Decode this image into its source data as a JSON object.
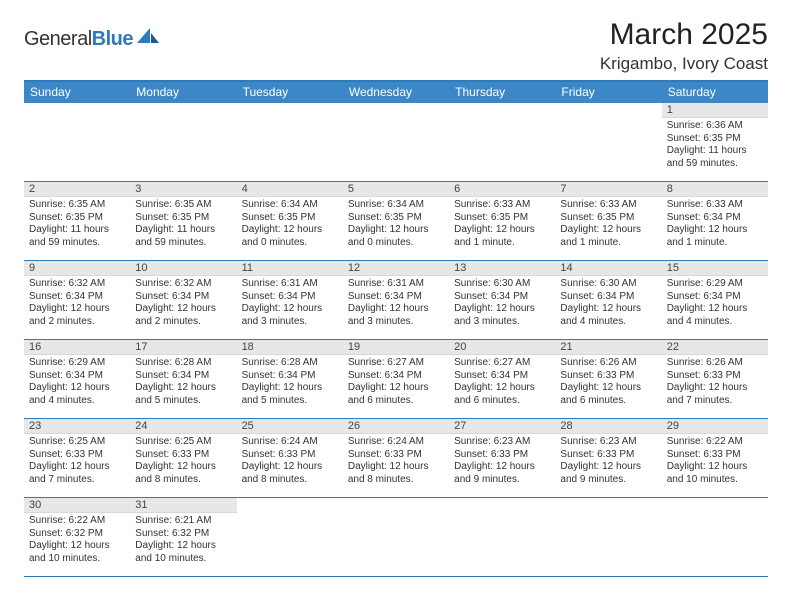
{
  "brand": {
    "name_a": "General",
    "name_b": "Blue"
  },
  "title": "March 2025",
  "location": "Krigambo, Ivory Coast",
  "colors": {
    "header_bg": "#3b87c8",
    "border": "#2f7ab8",
    "daynum_bg": "#e7e7e7"
  },
  "day_names": [
    "Sunday",
    "Monday",
    "Tuesday",
    "Wednesday",
    "Thursday",
    "Friday",
    "Saturday"
  ],
  "weeks": [
    [
      null,
      null,
      null,
      null,
      null,
      null,
      {
        "n": "1",
        "sr": "Sunrise: 6:36 AM",
        "ss": "Sunset: 6:35 PM",
        "dl": "Daylight: 11 hours and 59 minutes."
      }
    ],
    [
      {
        "n": "2",
        "sr": "Sunrise: 6:35 AM",
        "ss": "Sunset: 6:35 PM",
        "dl": "Daylight: 11 hours and 59 minutes."
      },
      {
        "n": "3",
        "sr": "Sunrise: 6:35 AM",
        "ss": "Sunset: 6:35 PM",
        "dl": "Daylight: 11 hours and 59 minutes."
      },
      {
        "n": "4",
        "sr": "Sunrise: 6:34 AM",
        "ss": "Sunset: 6:35 PM",
        "dl": "Daylight: 12 hours and 0 minutes."
      },
      {
        "n": "5",
        "sr": "Sunrise: 6:34 AM",
        "ss": "Sunset: 6:35 PM",
        "dl": "Daylight: 12 hours and 0 minutes."
      },
      {
        "n": "6",
        "sr": "Sunrise: 6:33 AM",
        "ss": "Sunset: 6:35 PM",
        "dl": "Daylight: 12 hours and 1 minute."
      },
      {
        "n": "7",
        "sr": "Sunrise: 6:33 AM",
        "ss": "Sunset: 6:35 PM",
        "dl": "Daylight: 12 hours and 1 minute."
      },
      {
        "n": "8",
        "sr": "Sunrise: 6:33 AM",
        "ss": "Sunset: 6:34 PM",
        "dl": "Daylight: 12 hours and 1 minute."
      }
    ],
    [
      {
        "n": "9",
        "sr": "Sunrise: 6:32 AM",
        "ss": "Sunset: 6:34 PM",
        "dl": "Daylight: 12 hours and 2 minutes."
      },
      {
        "n": "10",
        "sr": "Sunrise: 6:32 AM",
        "ss": "Sunset: 6:34 PM",
        "dl": "Daylight: 12 hours and 2 minutes."
      },
      {
        "n": "11",
        "sr": "Sunrise: 6:31 AM",
        "ss": "Sunset: 6:34 PM",
        "dl": "Daylight: 12 hours and 3 minutes."
      },
      {
        "n": "12",
        "sr": "Sunrise: 6:31 AM",
        "ss": "Sunset: 6:34 PM",
        "dl": "Daylight: 12 hours and 3 minutes."
      },
      {
        "n": "13",
        "sr": "Sunrise: 6:30 AM",
        "ss": "Sunset: 6:34 PM",
        "dl": "Daylight: 12 hours and 3 minutes."
      },
      {
        "n": "14",
        "sr": "Sunrise: 6:30 AM",
        "ss": "Sunset: 6:34 PM",
        "dl": "Daylight: 12 hours and 4 minutes."
      },
      {
        "n": "15",
        "sr": "Sunrise: 6:29 AM",
        "ss": "Sunset: 6:34 PM",
        "dl": "Daylight: 12 hours and 4 minutes."
      }
    ],
    [
      {
        "n": "16",
        "sr": "Sunrise: 6:29 AM",
        "ss": "Sunset: 6:34 PM",
        "dl": "Daylight: 12 hours and 4 minutes."
      },
      {
        "n": "17",
        "sr": "Sunrise: 6:28 AM",
        "ss": "Sunset: 6:34 PM",
        "dl": "Daylight: 12 hours and 5 minutes."
      },
      {
        "n": "18",
        "sr": "Sunrise: 6:28 AM",
        "ss": "Sunset: 6:34 PM",
        "dl": "Daylight: 12 hours and 5 minutes."
      },
      {
        "n": "19",
        "sr": "Sunrise: 6:27 AM",
        "ss": "Sunset: 6:34 PM",
        "dl": "Daylight: 12 hours and 6 minutes."
      },
      {
        "n": "20",
        "sr": "Sunrise: 6:27 AM",
        "ss": "Sunset: 6:34 PM",
        "dl": "Daylight: 12 hours and 6 minutes."
      },
      {
        "n": "21",
        "sr": "Sunrise: 6:26 AM",
        "ss": "Sunset: 6:33 PM",
        "dl": "Daylight: 12 hours and 6 minutes."
      },
      {
        "n": "22",
        "sr": "Sunrise: 6:26 AM",
        "ss": "Sunset: 6:33 PM",
        "dl": "Daylight: 12 hours and 7 minutes."
      }
    ],
    [
      {
        "n": "23",
        "sr": "Sunrise: 6:25 AM",
        "ss": "Sunset: 6:33 PM",
        "dl": "Daylight: 12 hours and 7 minutes."
      },
      {
        "n": "24",
        "sr": "Sunrise: 6:25 AM",
        "ss": "Sunset: 6:33 PM",
        "dl": "Daylight: 12 hours and 8 minutes."
      },
      {
        "n": "25",
        "sr": "Sunrise: 6:24 AM",
        "ss": "Sunset: 6:33 PM",
        "dl": "Daylight: 12 hours and 8 minutes."
      },
      {
        "n": "26",
        "sr": "Sunrise: 6:24 AM",
        "ss": "Sunset: 6:33 PM",
        "dl": "Daylight: 12 hours and 8 minutes."
      },
      {
        "n": "27",
        "sr": "Sunrise: 6:23 AM",
        "ss": "Sunset: 6:33 PM",
        "dl": "Daylight: 12 hours and 9 minutes."
      },
      {
        "n": "28",
        "sr": "Sunrise: 6:23 AM",
        "ss": "Sunset: 6:33 PM",
        "dl": "Daylight: 12 hours and 9 minutes."
      },
      {
        "n": "29",
        "sr": "Sunrise: 6:22 AM",
        "ss": "Sunset: 6:33 PM",
        "dl": "Daylight: 12 hours and 10 minutes."
      }
    ],
    [
      {
        "n": "30",
        "sr": "Sunrise: 6:22 AM",
        "ss": "Sunset: 6:32 PM",
        "dl": "Daylight: 12 hours and 10 minutes."
      },
      {
        "n": "31",
        "sr": "Sunrise: 6:21 AM",
        "ss": "Sunset: 6:32 PM",
        "dl": "Daylight: 12 hours and 10 minutes."
      },
      null,
      null,
      null,
      null,
      null
    ]
  ]
}
